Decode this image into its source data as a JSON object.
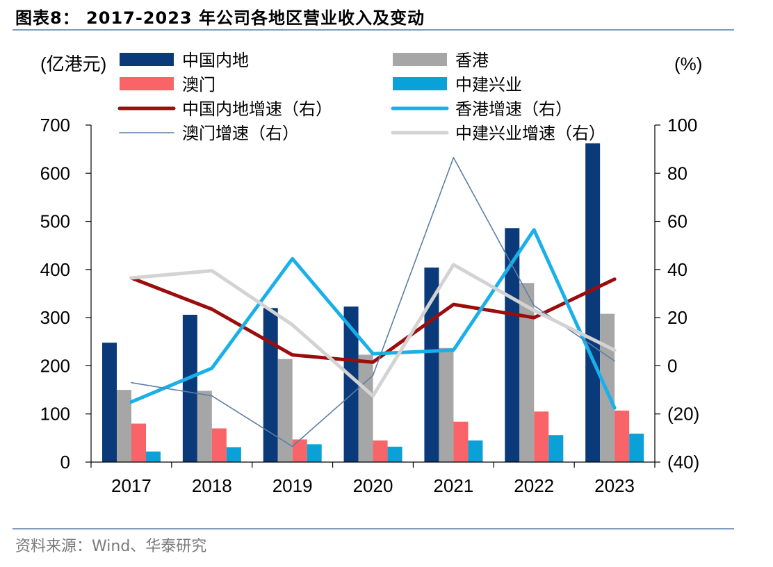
{
  "header": {
    "title": "图表8：  2017-2023 年公司各地区营业收入及变动"
  },
  "footer": {
    "source": "资料来源：Wind、华泰研究"
  },
  "chart_data": {
    "type": "bar",
    "title": "图表8：  2017-2023 年公司各地区营业收入及变动",
    "categories": [
      "2017",
      "2018",
      "2019",
      "2020",
      "2021",
      "2022",
      "2023"
    ],
    "ylabel": "(亿港元)",
    "y2label": "(%)",
    "ylim": [
      0,
      700
    ],
    "y2lim": [
      -40,
      100
    ],
    "yticks": [
      "0",
      "100",
      "200",
      "300",
      "400",
      "500",
      "600",
      "700"
    ],
    "y2ticks": [
      "(40)",
      "(20)",
      "0",
      "20",
      "40",
      "60",
      "80",
      "100"
    ],
    "legend_position": "top",
    "bar_series": [
      {
        "name": "中国内地",
        "color": "#0b3a7b",
        "values": [
          248,
          306,
          320,
          323,
          404,
          486,
          662
        ]
      },
      {
        "name": "香港",
        "color": "#a6a6a6",
        "values": [
          150,
          148,
          214,
          223,
          237,
          372,
          308
        ]
      },
      {
        "name": "澳门",
        "color": "#f86468",
        "values": [
          80,
          70,
          47,
          45,
          84,
          105,
          107
        ]
      },
      {
        "name": "中建兴业",
        "color": "#0aa0d8",
        "values": [
          22,
          31,
          37,
          32,
          45,
          56,
          59
        ]
      }
    ],
    "line_series": [
      {
        "name": "中国内地增速（右）",
        "color": "#9b0c0c",
        "width": 5,
        "values": [
          36.5,
          23.5,
          4.5,
          1.5,
          25.5,
          20,
          36
        ]
      },
      {
        "name": "香港增速（右）",
        "color": "#19b0ea",
        "width": 5,
        "values": [
          -15,
          -1,
          44.5,
          5,
          6.5,
          56.5,
          -17.5
        ]
      },
      {
        "name": "澳门增速（右）",
        "color": "#5b7fa6",
        "width": 1.6,
        "values": [
          -7,
          -12.5,
          -33.5,
          -4,
          86.5,
          25,
          2
        ]
      },
      {
        "name": "中建兴业增速（右）",
        "color": "#d3d3d3",
        "width": 5,
        "values": [
          36.5,
          39.5,
          17,
          -12.5,
          42,
          23,
          6.5
        ]
      }
    ],
    "legend_order": [
      "中国内地",
      "香港",
      "澳门",
      "中建兴业",
      "中国内地增速（右）",
      "香港增速（右）",
      "澳门增速（右）",
      "中建兴业增速（右）"
    ]
  }
}
